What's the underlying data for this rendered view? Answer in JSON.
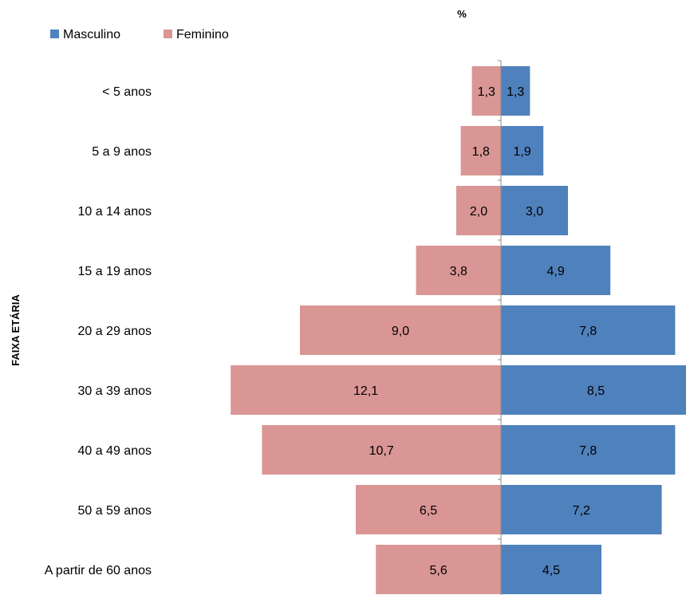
{
  "chart_data": {
    "type": "bar",
    "orientation": "horizontal",
    "layout": "population-pyramid",
    "title": "",
    "xlabel": "%",
    "ylabel": "FAIXA ETÁRIA",
    "categories": [
      "< 5 anos",
      "5 a 9 anos",
      "10 a 14 anos",
      "15 a 19 anos",
      "20 a 29 anos",
      "30 a 39 anos",
      "40 a 49 anos",
      "50 a 59 anos",
      "A partir de 60 anos"
    ],
    "series": [
      {
        "name": "Masculino",
        "color": "#4f81bd",
        "side": "right",
        "values": [
          1.3,
          1.9,
          3.0,
          4.9,
          7.8,
          8.5,
          7.8,
          7.2,
          4.5
        ],
        "labels": [
          "1,3",
          "1,9",
          "3,0",
          "4,9",
          "7,8",
          "8,5",
          "7,8",
          "7,2",
          "4,5"
        ]
      },
      {
        "name": "Feminino",
        "color": "#d99694",
        "side": "left",
        "values": [
          1.3,
          1.8,
          2.0,
          3.8,
          9.0,
          12.1,
          10.7,
          6.5,
          5.6
        ],
        "labels": [
          "1,3",
          "1,8",
          "2,0",
          "3,8",
          "9,0",
          "12,1",
          "10,7",
          "6,5",
          "5,6"
        ]
      }
    ],
    "legend": {
      "position": "top-left",
      "items": [
        "Masculino",
        "Feminino"
      ]
    },
    "grid": false
  }
}
